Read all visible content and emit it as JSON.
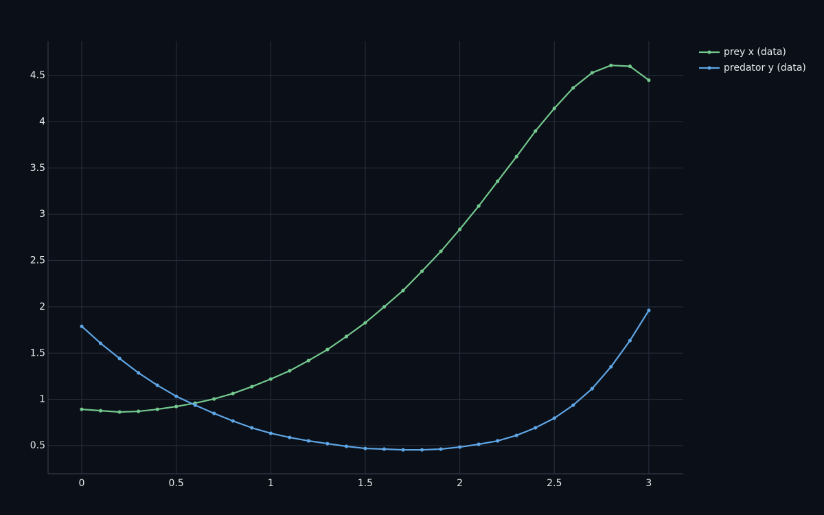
{
  "chart_data": {
    "type": "line",
    "x": [
      0,
      0.1,
      0.2,
      0.3,
      0.4,
      0.5,
      0.6,
      0.7,
      0.8,
      0.9,
      1,
      1.1,
      1.2,
      1.3,
      1.4,
      1.5,
      1.6,
      1.7,
      1.8,
      1.9,
      2,
      2.1,
      2.2,
      2.3,
      2.4,
      2.5,
      2.6,
      2.7,
      2.8,
      2.9,
      3
    ],
    "series": [
      {
        "name": "prey x (data)",
        "color": "#74c98f",
        "values": [
          0.893,
          0.878,
          0.864,
          0.871,
          0.893,
          0.923,
          0.96,
          1.005,
          1.064,
          1.138,
          1.22,
          1.309,
          1.42,
          1.539,
          1.68,
          1.828,
          2.0,
          2.177,
          2.385,
          2.6,
          2.838,
          3.09,
          3.357,
          3.624,
          3.9,
          4.145,
          4.367,
          4.53,
          4.61,
          4.6,
          4.45
        ]
      },
      {
        "name": "predator y (data)",
        "color": "#5fa6e6",
        "values": [
          1.79,
          1.606,
          1.443,
          1.287,
          1.153,
          1.034,
          0.938,
          0.849,
          0.767,
          0.693,
          0.634,
          0.589,
          0.552,
          0.522,
          0.493,
          0.47,
          0.463,
          0.455,
          0.455,
          0.463,
          0.485,
          0.515,
          0.552,
          0.611,
          0.693,
          0.797,
          0.938,
          1.116,
          1.353,
          1.635,
          1.962
        ]
      }
    ],
    "xlim": [
      -0.178,
      3.182
    ],
    "ylim": [
      0.196,
      4.871
    ],
    "xticks": [
      0,
      0.5,
      1,
      1.5,
      2,
      2.5,
      3
    ],
    "yticks": [
      0.5,
      1,
      1.5,
      2,
      2.5,
      3,
      3.5,
      4,
      4.5
    ],
    "grid": true,
    "markers": true,
    "legend": "top-right"
  }
}
